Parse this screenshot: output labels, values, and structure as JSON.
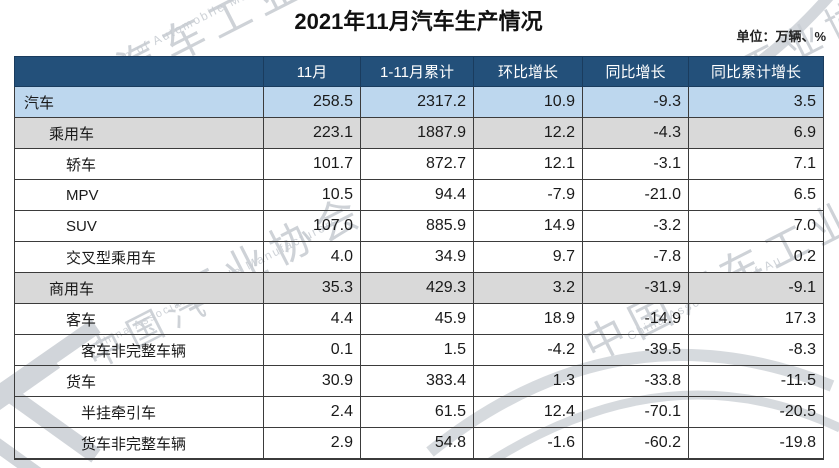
{
  "title": "2021年11月汽车生产情况",
  "unit_note": "单位：万辆、%",
  "colors": {
    "header_bg": "#23507A",
    "header_text": "#FFFFFF",
    "total_row_bg": "#BDD7EE",
    "subtotal_row_bg": "#D9D9D9",
    "border": "#3B3B3B",
    "watermark": "#C6CBD1"
  },
  "watermark": {
    "fragments": [
      "中国汽车工业协会",
      "ation of Automobile Manufacture",
      "工业协会",
      "bile Manufacturers",
      "中国汽车工业",
      "China Association of Au",
      "中国汽车",
      "China Association of",
      "工业协会"
    ]
  },
  "table": {
    "columns": [
      "",
      "11月",
      "1-11月累计",
      "环比增长",
      "同比增长",
      "同比累计增长"
    ],
    "rows": [
      {
        "label": "汽车",
        "indent": 0,
        "style": "blue",
        "values": [
          "258.5",
          "2317.2",
          "10.9",
          "-9.3",
          "3.5"
        ]
      },
      {
        "label": "乘用车",
        "indent": 1,
        "style": "gray",
        "values": [
          "223.1",
          "1887.9",
          "12.2",
          "-4.3",
          "6.9"
        ]
      },
      {
        "label": "轿车",
        "indent": 2,
        "style": "white",
        "values": [
          "101.7",
          "872.7",
          "12.1",
          "-3.1",
          "7.1"
        ]
      },
      {
        "label": "MPV",
        "indent": 2,
        "style": "white",
        "values": [
          "10.5",
          "94.4",
          "-7.9",
          "-21.0",
          "6.5"
        ]
      },
      {
        "label": "SUV",
        "indent": 2,
        "style": "white",
        "values": [
          "107.0",
          "885.9",
          "14.9",
          "-3.2",
          "7.0"
        ]
      },
      {
        "label": "交叉型乘用车",
        "indent": 2,
        "style": "white",
        "values": [
          "4.0",
          "34.9",
          "9.7",
          "-7.8",
          "0.2"
        ]
      },
      {
        "label": "商用车",
        "indent": 1,
        "style": "gray",
        "values": [
          "35.3",
          "429.3",
          "3.2",
          "-31.9",
          "-9.1"
        ]
      },
      {
        "label": "客车",
        "indent": 2,
        "style": "white",
        "values": [
          "4.4",
          "45.9",
          "18.9",
          "-14.9",
          "17.3"
        ]
      },
      {
        "label": "客车非完整车辆",
        "indent": 3,
        "style": "white",
        "values": [
          "0.1",
          "1.5",
          "-4.2",
          "-39.5",
          "-8.3"
        ]
      },
      {
        "label": "货车",
        "indent": 2,
        "style": "white",
        "values": [
          "30.9",
          "383.4",
          "1.3",
          "-33.8",
          "-11.5"
        ]
      },
      {
        "label": "半挂牵引车",
        "indent": 3,
        "style": "white",
        "values": [
          "2.4",
          "61.5",
          "12.4",
          "-70.1",
          "-20.5"
        ]
      },
      {
        "label": "货车非完整车辆",
        "indent": 3,
        "style": "white",
        "values": [
          "2.9",
          "54.8",
          "-1.6",
          "-60.2",
          "-19.8"
        ]
      }
    ]
  }
}
